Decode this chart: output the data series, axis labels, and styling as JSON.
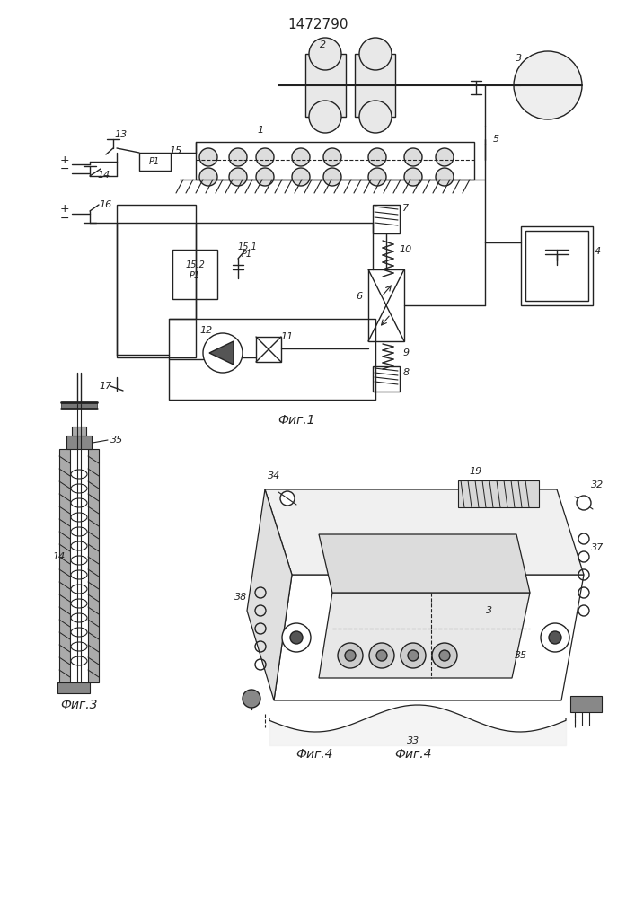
{
  "title": "1472790",
  "fig1_label": "Фиг.1",
  "fig3_label": "Фиг.3",
  "fig4_label": "Фиг.4",
  "bg": "#ffffff",
  "lc": "#222222"
}
